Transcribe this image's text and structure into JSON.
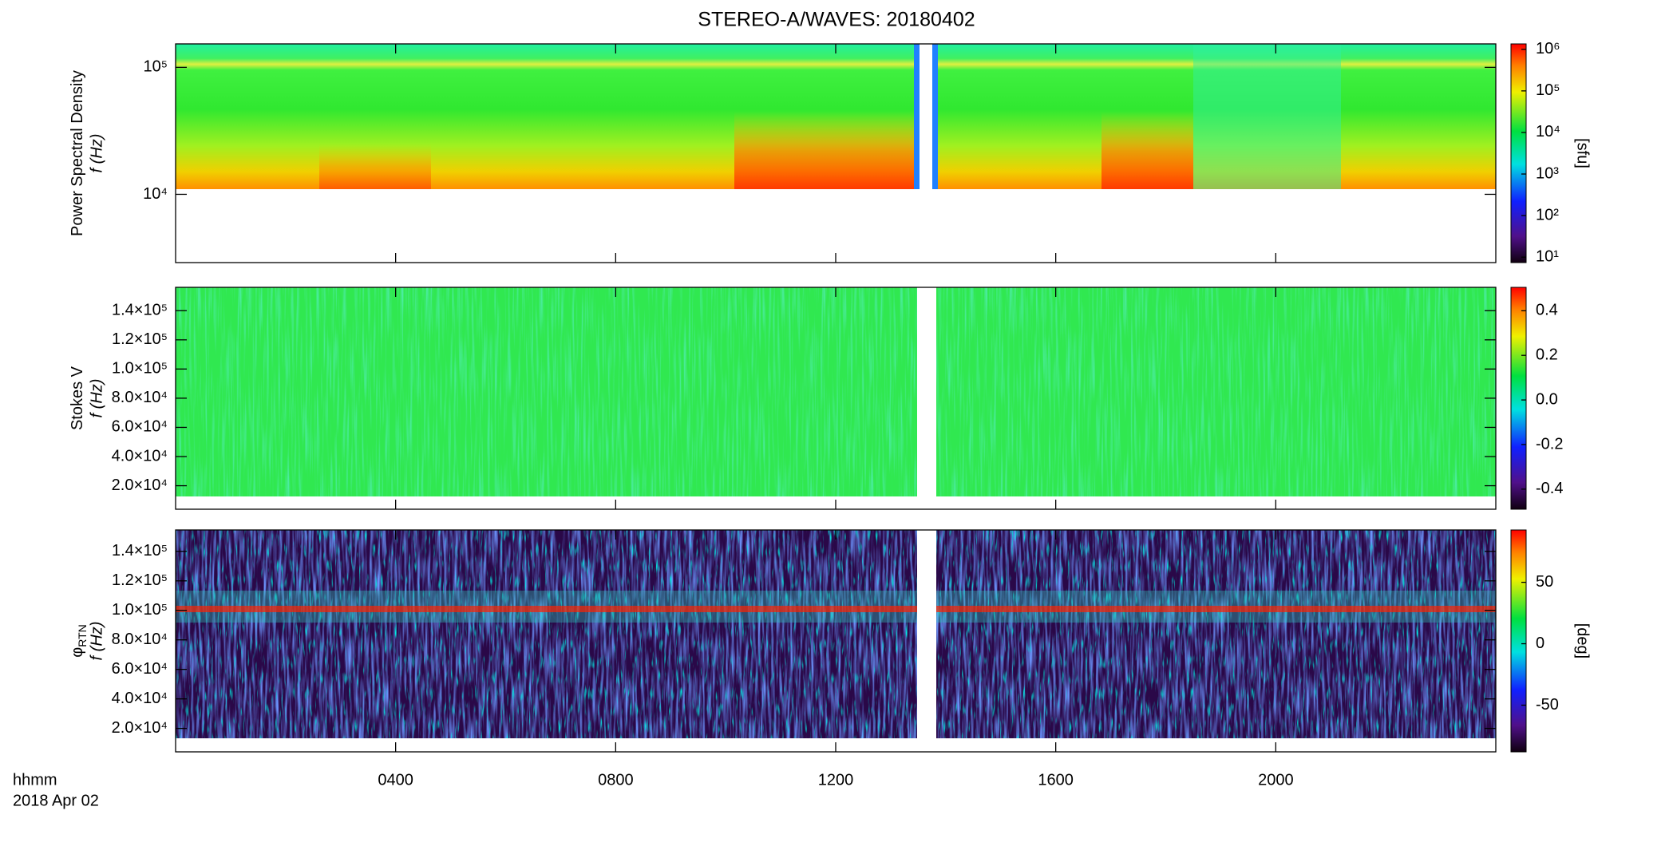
{
  "chart_data": [
    {
      "type": "spectrogram",
      "title": "STEREO-A/WAVES: 20180402",
      "ylabel": [
        "Power Spectral Density",
        "f (Hz)"
      ],
      "log": true,
      "ylim": [
        2900,
        153000
      ],
      "yticks": [
        {
          "value": 10000,
          "label": "10⁴"
        },
        {
          "value": 100000,
          "label": "10⁵"
        }
      ],
      "colorbar": {
        "log": true,
        "lim": [
          7.4,
          1350000
        ],
        "label": "[sfu]",
        "ticks": [
          {
            "value": 10,
            "label": "10¹"
          },
          {
            "value": 100,
            "label": "10²"
          },
          {
            "value": 1000,
            "label": "10³"
          },
          {
            "value": 10000,
            "label": "10⁴"
          },
          {
            "value": 100000,
            "label": "10⁵"
          },
          {
            "value": 1000000,
            "label": "10⁶"
          }
        ]
      }
    },
    {
      "type": "spectrogram",
      "ylabel": [
        "Stokes V",
        "f (Hz)"
      ],
      "log": false,
      "ylim": [
        3900,
        156000
      ],
      "yticks": [
        {
          "value": 20000,
          "label": "2.0×10⁴"
        },
        {
          "value": 40000,
          "label": "4.0×10⁴"
        },
        {
          "value": 60000,
          "label": "6.0×10⁴"
        },
        {
          "value": 80000,
          "label": "8.0×10⁴"
        },
        {
          "value": 100000,
          "label": "1.0×10⁵"
        },
        {
          "value": 120000,
          "label": "1.2×10⁵"
        },
        {
          "value": 140000,
          "label": "1.4×10⁵"
        }
      ],
      "colorbar": {
        "log": false,
        "lim": [
          -0.49,
          0.505
        ],
        "label": "",
        "ticks": [
          {
            "value": -0.4,
            "label": "-0.4"
          },
          {
            "value": -0.2,
            "label": "-0.2"
          },
          {
            "value": 0,
            "label": "0.0"
          },
          {
            "value": 0.2,
            "label": "0.2"
          },
          {
            "value": 0.4,
            "label": "0.4"
          }
        ]
      }
    },
    {
      "type": "spectrogram",
      "ylabel": [
        "φ",
        "f (Hz)"
      ],
      "ylabel_sub": "RTN",
      "log": false,
      "ylim": [
        4100,
        154500
      ],
      "yticks": [
        {
          "value": 20000,
          "label": "2.0×10⁴"
        },
        {
          "value": 40000,
          "label": "4.0×10⁴"
        },
        {
          "value": 60000,
          "label": "6.0×10⁴"
        },
        {
          "value": 80000,
          "label": "8.0×10⁴"
        },
        {
          "value": 100000,
          "label": "1.0×10⁵"
        },
        {
          "value": 120000,
          "label": "1.2×10⁵"
        },
        {
          "value": 140000,
          "label": "1.4×10⁵"
        }
      ],
      "colorbar": {
        "log": false,
        "lim": [
          -88,
          92.6
        ],
        "label": "[deg]",
        "ticks": [
          -50,
          0,
          50
        ]
      },
      "xlim": [
        0,
        24
      ],
      "xticks": [
        {
          "value": 4,
          "label": "0400"
        },
        {
          "value": 8,
          "label": "0800"
        },
        {
          "value": 12,
          "label": "1200"
        },
        {
          "value": 16,
          "label": "1600"
        },
        {
          "value": 20,
          "label": "2000"
        }
      ],
      "xlabel": "hhmm",
      "date_label": "2018 Apr 02"
    }
  ]
}
